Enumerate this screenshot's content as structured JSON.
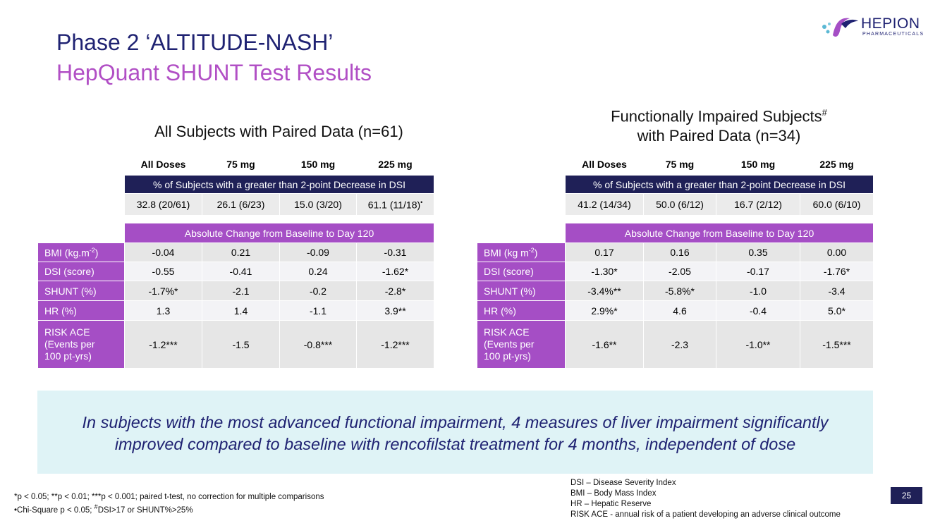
{
  "header": {
    "title_line1": "Phase 2 ‘ALTITUDE-NASH’",
    "title_line2": "HepQuant SHUNT Test Results"
  },
  "logo": {
    "brand": "HEPION",
    "sub": "PHARMACEUTICALS"
  },
  "left_panel": {
    "title": "All Subjects with Paired Data (n=61)",
    "columns": [
      "All Doses",
      "75 mg",
      "150 mg",
      "225 mg"
    ],
    "pct_band": "% of Subjects with a greater than 2-point Decrease in DSI",
    "pct_values": [
      "32.8 (20/61)",
      "26.1 (6/23)",
      "15.0 (3/20)",
      "61.1 (11/18)"
    ],
    "pct_last_mark": "•",
    "change_band": "Absolute Change from Baseline to Day 120",
    "rows": [
      {
        "label": "BMI (kg.m",
        "label_sup": "-2",
        "label_end": ")",
        "values": [
          "-0.04",
          "0.21",
          "-0.09",
          "-0.31"
        ]
      },
      {
        "label": "DSI (score)",
        "values": [
          "-0.55",
          "-0.41",
          "0.24",
          "-1.62*"
        ]
      },
      {
        "label": "SHUNT (%)",
        "values": [
          "-1.7%*",
          "-2.1",
          "-0.2",
          "-2.8*"
        ]
      },
      {
        "label": "HR (%)",
        "values": [
          "1.3",
          "1.4",
          "-1.1",
          "3.9**"
        ]
      },
      {
        "label_lines": [
          "RISK ACE",
          "(Events per",
          "100 pt-yrs)"
        ],
        "values": [
          "-1.2***",
          "-1.5",
          "-0.8***",
          "-1.2***"
        ]
      }
    ]
  },
  "right_panel": {
    "title_line1": "Functionally Impaired Subjects",
    "title_sup": "#",
    "title_line2": "with Paired Data (n=34)",
    "columns": [
      "All Doses",
      "75 mg",
      "150 mg",
      "225 mg"
    ],
    "pct_band": "% of Subjects with a greater than 2-point Decrease in DSI",
    "pct_values": [
      "41.2 (14/34)",
      "50.0 (6/12)",
      "16.7 (2/12)",
      "60.0 (6/10)"
    ],
    "change_band": "Absolute Change from Baseline to Day 120",
    "rows": [
      {
        "label": "BMI (kg m",
        "label_sup": "-2",
        "label_end": ")",
        "values": [
          "0.17",
          "0.16",
          "0.35",
          "0.00"
        ]
      },
      {
        "label": "DSI (score)",
        "values": [
          "-1.30*",
          "-2.05",
          "-0.17",
          "-1.76*"
        ]
      },
      {
        "label": "SHUNT (%)",
        "values": [
          "-3.4%**",
          "-5.8%*",
          "-1.0",
          "-3.4"
        ]
      },
      {
        "label": "HR (%)",
        "values": [
          "2.9%*",
          "4.6",
          "-0.4",
          "5.0*"
        ]
      },
      {
        "label_lines": [
          "RISK ACE",
          "(Events per",
          "100 pt-yrs)"
        ],
        "values": [
          "-1.6**",
          "-2.3",
          "-1.0**",
          "-1.5***"
        ]
      }
    ]
  },
  "callout": {
    "line1": "In subjects with the most advanced functional impairment, 4 measures of liver impairment significantly",
    "line2": "improved compared to baseline with rencofilstat treatment for 4 months, independent of dose"
  },
  "footnotes": {
    "line1": "*p < 0.05; **p < 0.01; ***p < 0.001; paired t-test, no correction for multiple comparisons",
    "line2_start": "•Chi-Square p < 0.05; ",
    "line2_sup": "#",
    "line2_end": "DSI>17 or SHUNT%>25%"
  },
  "definitions": [
    "DSI – Disease Severity Index",
    "BMI – Body Mass Index",
    "HR – Hepatic Reserve",
    "RISK ACE - annual risk of a patient developing an adverse clinical outcome"
  ],
  "page_number": "25",
  "colors": {
    "navy": "#1f2057",
    "purple": "#a54ec5",
    "title_purple": "#b14fc5",
    "callout_bg": "#dff3f6"
  },
  "icons": {
    "logo": "hepion-logo-icon"
  }
}
